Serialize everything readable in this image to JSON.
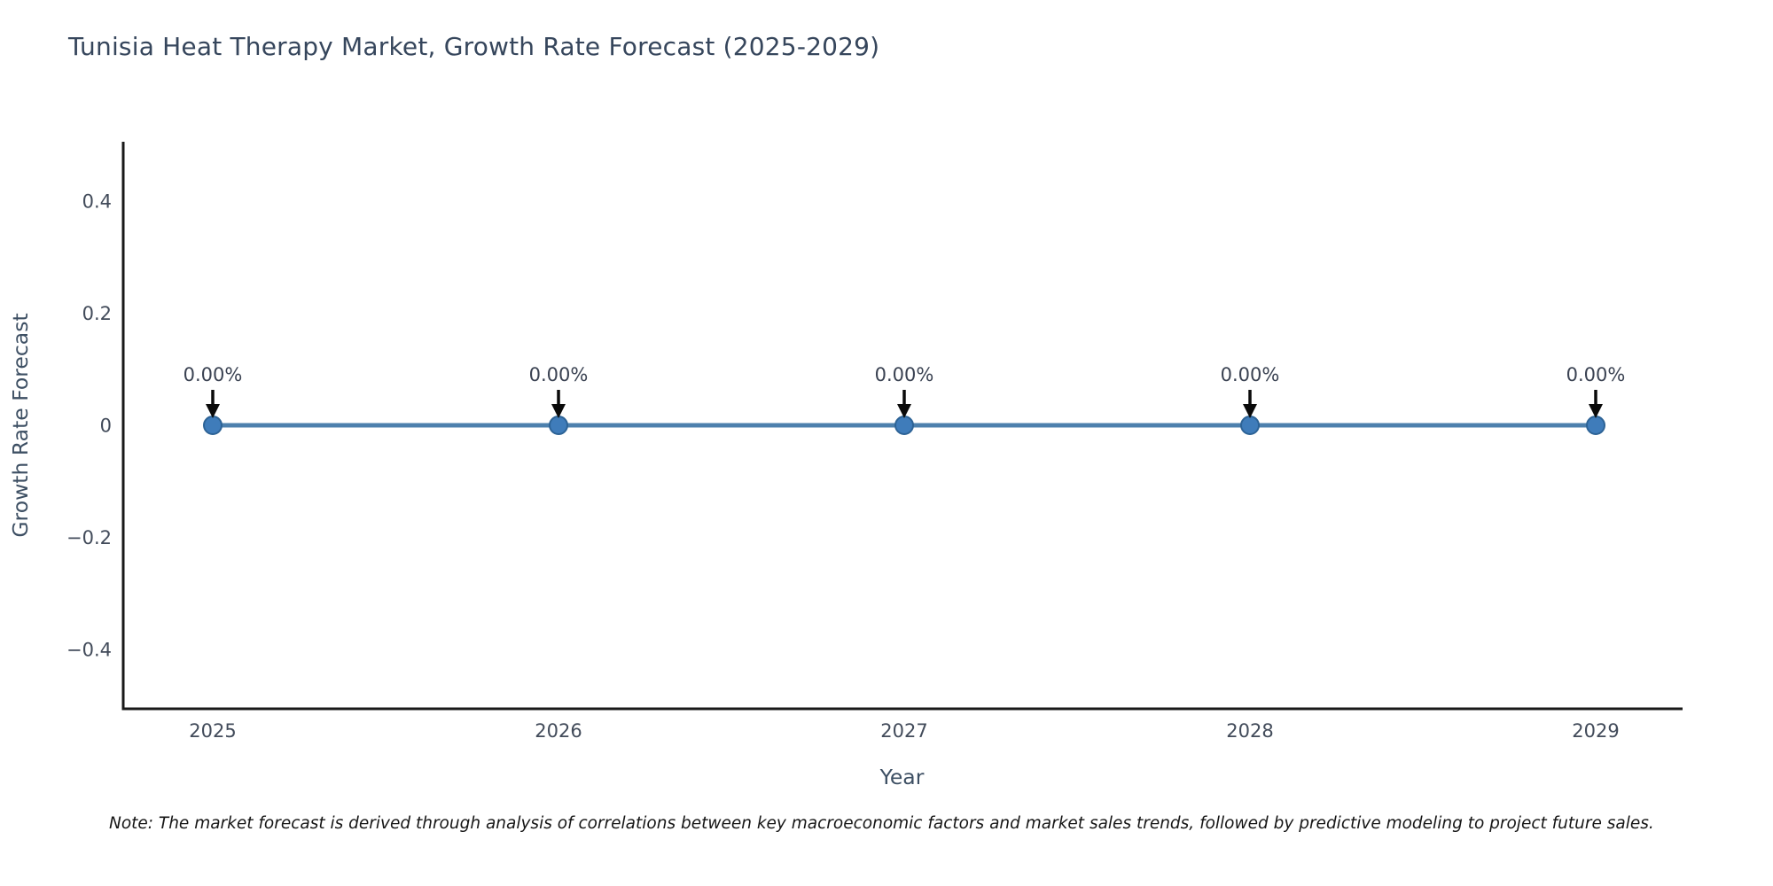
{
  "title": "Tunisia Heat Therapy Market, Growth Rate Forecast (2025-2029)",
  "note": "Note: The market forecast is derived through analysis of correlations between key macroeconomic factors and market sales trends, followed by predictive modeling to project future sales.",
  "chart_data": {
    "type": "line",
    "title": "Tunisia Heat Therapy Market, Growth Rate Forecast (2025-2029)",
    "xlabel": "Year",
    "ylabel": "Growth Rate Forecast",
    "x": [
      2025,
      2026,
      2027,
      2028,
      2029
    ],
    "values": [
      0,
      0,
      0,
      0,
      0
    ],
    "point_labels": [
      "0.00%",
      "0.00%",
      "0.00%",
      "0.00%",
      "0.00%"
    ],
    "xtick_labels": [
      "2025",
      "2026",
      "2027",
      "2028",
      "2029"
    ],
    "yticks": [
      0.4,
      0.2,
      0,
      -0.2,
      -0.4
    ],
    "ytick_labels": [
      "0.4",
      "0.2",
      "0",
      "−0.2",
      "−0.4"
    ],
    "ylim": [
      -0.51,
      0.51
    ],
    "grid": false,
    "legend": "none",
    "colors": {
      "line": "#4d80ad",
      "marker_fill": "#3f7cba",
      "marker_edge": "#2d6396",
      "spine": "#191919",
      "arrow": "#0a0a0a",
      "tick_text": "#424b5a",
      "axis_label_text": "#3d4f63",
      "title_text": "#36465c",
      "annotation_text": "#3a4252"
    }
  }
}
